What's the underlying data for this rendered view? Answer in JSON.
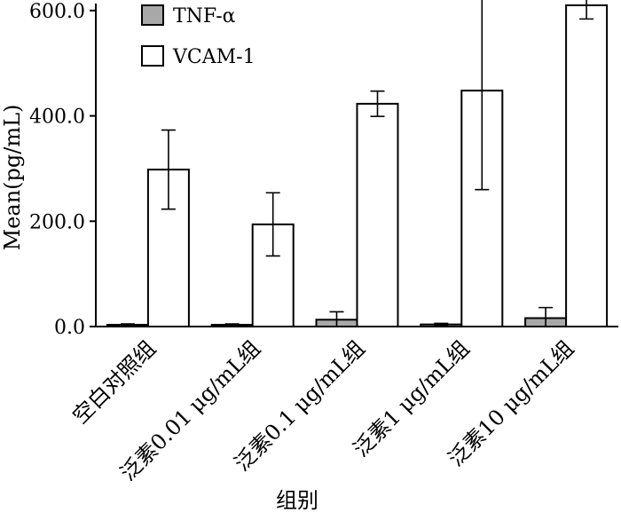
{
  "chart_data": {
    "type": "bar",
    "ylabel": "Mean(pg/mL)",
    "xlabel": "组别",
    "ylim": [
      0,
      620
    ],
    "yticks": [
      0,
      200,
      400,
      600
    ],
    "ytick_labels": [
      "0.0",
      "200.0",
      "400.0",
      "600.0"
    ],
    "categories": [
      "空白对照组",
      "泛素0.01 μg/mL组",
      "泛素0.1 μg/mL组",
      "泛素1 μg/mL组",
      "泛素10 μg/mL组"
    ],
    "series": [
      {
        "name": "TNF-α",
        "color": "#a8a8a8",
        "values": [
          3,
          3,
          13,
          4,
          16
        ],
        "errors": [
          2,
          2,
          15,
          2,
          20
        ]
      },
      {
        "name": "VCAM-1",
        "color": "#ffffff",
        "values": [
          298,
          194,
          423,
          448,
          610
        ],
        "errors": [
          75,
          60,
          24,
          188,
          26
        ]
      }
    ],
    "annotations": [
      {
        "category_index": 4,
        "series_index": 1,
        "text": "*"
      }
    ],
    "legend_position": "top-left",
    "grid": false
  }
}
